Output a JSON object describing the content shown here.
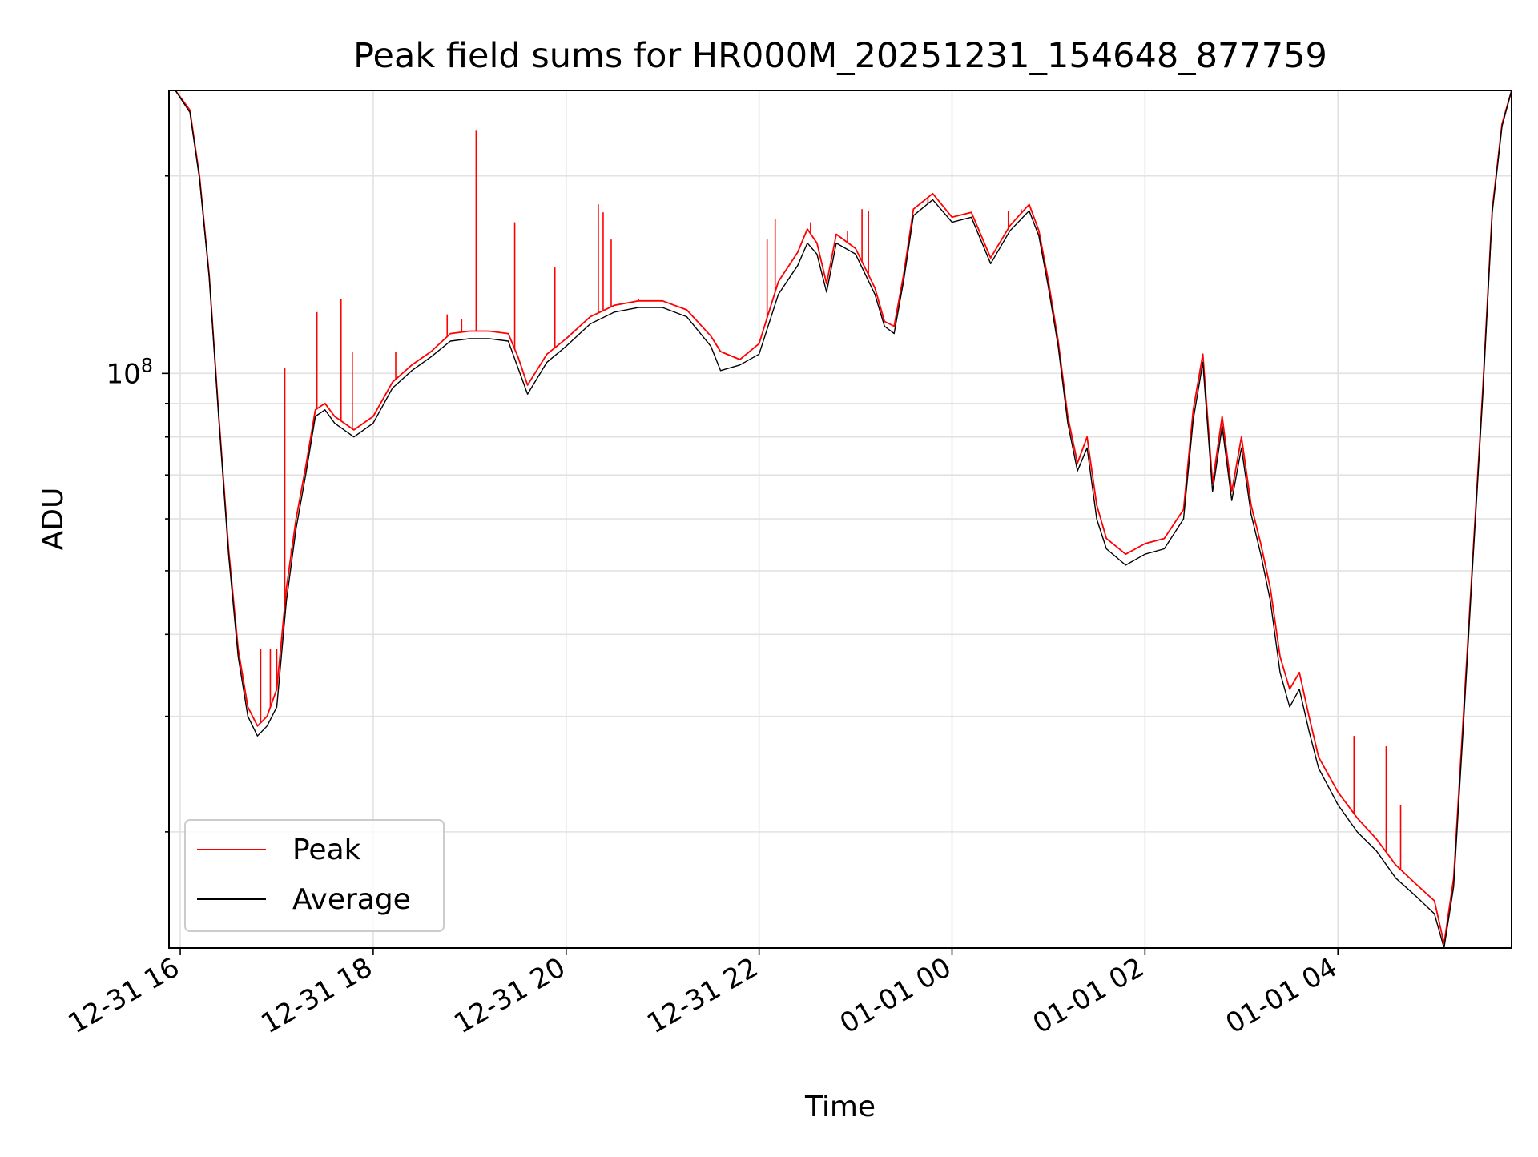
{
  "chart_data": {
    "type": "line",
    "title": "Peak field sums for HR000M_20251231_154648_877759",
    "xlabel": "Time",
    "ylabel": "ADU",
    "x_range": [
      "2025-12-31 15:53",
      "2026-01-01 05:48"
    ],
    "ylim": [
      13300000,
      270000000
    ],
    "y_scale": "log",
    "y_tick_label": {
      "base": "10",
      "exponent": "8",
      "value": 100000000
    },
    "grid": true,
    "legend_position": "lower-left",
    "x_tick_labels": [
      "12-31 16",
      "12-31 18",
      "12-31 20",
      "12-31 22",
      "01-01 00",
      "01-01 02",
      "01-01 04"
    ],
    "x_tick_values": [
      "2025-12-31 16:00",
      "2025-12-31 18:00",
      "2025-12-31 20:00",
      "2025-12-31 22:00",
      "2026-01-01 00:00",
      "2026-01-01 02:00",
      "2026-01-01 04:00"
    ],
    "series": [
      {
        "name": "Peak",
        "color": "#ff0000",
        "x": [
          "2025-12-31 15:57",
          "2025-12-31 16:06",
          "2025-12-31 16:12",
          "2025-12-31 16:18",
          "2025-12-31 16:24",
          "2025-12-31 16:30",
          "2025-12-31 16:36",
          "2025-12-31 16:42",
          "2025-12-31 16:48",
          "2025-12-31 16:54",
          "2025-12-31 17:00",
          "2025-12-31 17:06",
          "2025-12-31 17:12",
          "2025-12-31 17:18",
          "2025-12-31 17:24",
          "2025-12-31 17:30",
          "2025-12-31 17:36",
          "2025-12-31 17:48",
          "2025-12-31 18:00",
          "2025-12-31 18:12",
          "2025-12-31 18:24",
          "2025-12-31 18:36",
          "2025-12-31 18:48",
          "2025-12-31 19:00",
          "2025-12-31 19:12",
          "2025-12-31 19:24",
          "2025-12-31 19:30",
          "2025-12-31 19:36",
          "2025-12-31 19:48",
          "2025-12-31 20:00",
          "2025-12-31 20:15",
          "2025-12-31 20:30",
          "2025-12-31 20:45",
          "2025-12-31 21:00",
          "2025-12-31 21:15",
          "2025-12-31 21:30",
          "2025-12-31 21:36",
          "2025-12-31 21:48",
          "2025-12-31 22:00",
          "2025-12-31 22:12",
          "2025-12-31 22:24",
          "2025-12-31 22:30",
          "2025-12-31 22:36",
          "2025-12-31 22:42",
          "2025-12-31 22:48",
          "2025-12-31 23:00",
          "2025-12-31 23:12",
          "2025-12-31 23:18",
          "2025-12-31 23:24",
          "2025-12-31 23:30",
          "2025-12-31 23:36",
          "2025-12-31 23:48",
          "2026-01-01 00:00",
          "2026-01-01 00:12",
          "2026-01-01 00:24",
          "2026-01-01 00:36",
          "2026-01-01 00:48",
          "2026-01-01 00:54",
          "2026-01-01 01:00",
          "2026-01-01 01:06",
          "2026-01-01 01:12",
          "2026-01-01 01:18",
          "2026-01-01 01:24",
          "2026-01-01 01:30",
          "2026-01-01 01:36",
          "2026-01-01 01:48",
          "2026-01-01 02:00",
          "2026-01-01 02:12",
          "2026-01-01 02:24",
          "2026-01-01 02:30",
          "2026-01-01 02:36",
          "2026-01-01 02:42",
          "2026-01-01 02:48",
          "2026-01-01 02:54",
          "2026-01-01 03:00",
          "2026-01-01 03:06",
          "2026-01-01 03:12",
          "2026-01-01 03:18",
          "2026-01-01 03:24",
          "2026-01-01 03:30",
          "2026-01-01 03:36",
          "2026-01-01 03:42",
          "2026-01-01 03:48",
          "2026-01-01 04:00",
          "2026-01-01 04:12",
          "2026-01-01 04:24",
          "2026-01-01 04:36",
          "2026-01-01 04:48",
          "2026-01-01 05:00",
          "2026-01-01 05:06",
          "2026-01-01 05:12",
          "2026-01-01 05:18",
          "2026-01-01 05:24",
          "2026-01-01 05:30",
          "2026-01-01 05:36",
          "2026-01-01 05:42",
          "2026-01-01 05:48"
        ],
        "y": [
          270000000,
          252000000,
          200000000,
          141000000,
          86000000,
          54000000,
          38000000,
          31000000,
          29000000,
          30000000,
          33000000,
          47000000,
          60000000,
          72000000,
          88000000,
          90000000,
          86000000,
          82000000,
          86000000,
          97000000,
          103000000,
          108000000,
          115000000,
          116000000,
          116000000,
          115000000,
          106000000,
          96000000,
          107000000,
          113000000,
          122000000,
          127000000,
          129000000,
          129000000,
          125000000,
          114000000,
          108000000,
          105000000,
          111000000,
          138000000,
          153000000,
          166000000,
          158000000,
          137000000,
          163000000,
          155000000,
          135000000,
          120000000,
          118000000,
          142000000,
          178000000,
          188000000,
          173000000,
          176000000,
          150000000,
          168000000,
          181000000,
          165000000,
          138000000,
          112000000,
          86000000,
          73000000,
          80000000,
          63000000,
          56000000,
          53000000,
          55000000,
          56000000,
          62000000,
          88000000,
          107000000,
          68000000,
          86000000,
          66000000,
          80000000,
          63000000,
          55000000,
          47000000,
          37000000,
          33000000,
          35000000,
          30000000,
          26000000,
          23000000,
          21000000,
          19500000,
          17800000,
          16700000,
          15700000,
          13500000,
          17000000,
          30000000,
          53000000,
          94000000,
          178000000,
          240000000,
          270000000
        ]
      },
      {
        "name": "Average",
        "color": "#000000",
        "x": [
          "2025-12-31 15:57",
          "2025-12-31 16:06",
          "2025-12-31 16:12",
          "2025-12-31 16:18",
          "2025-12-31 16:24",
          "2025-12-31 16:30",
          "2025-12-31 16:36",
          "2025-12-31 16:42",
          "2025-12-31 16:48",
          "2025-12-31 16:54",
          "2025-12-31 17:00",
          "2025-12-31 17:06",
          "2025-12-31 17:12",
          "2025-12-31 17:18",
          "2025-12-31 17:24",
          "2025-12-31 17:30",
          "2025-12-31 17:36",
          "2025-12-31 17:48",
          "2025-12-31 18:00",
          "2025-12-31 18:12",
          "2025-12-31 18:24",
          "2025-12-31 18:36",
          "2025-12-31 18:48",
          "2025-12-31 19:00",
          "2025-12-31 19:12",
          "2025-12-31 19:24",
          "2025-12-31 19:30",
          "2025-12-31 19:36",
          "2025-12-31 19:48",
          "2025-12-31 20:00",
          "2025-12-31 20:15",
          "2025-12-31 20:30",
          "2025-12-31 20:45",
          "2025-12-31 21:00",
          "2025-12-31 21:15",
          "2025-12-31 21:30",
          "2025-12-31 21:36",
          "2025-12-31 21:48",
          "2025-12-31 22:00",
          "2025-12-31 22:12",
          "2025-12-31 22:24",
          "2025-12-31 22:30",
          "2025-12-31 22:36",
          "2025-12-31 22:42",
          "2025-12-31 22:48",
          "2025-12-31 23:00",
          "2025-12-31 23:12",
          "2025-12-31 23:18",
          "2025-12-31 23:24",
          "2025-12-31 23:30",
          "2025-12-31 23:36",
          "2025-12-31 23:48",
          "2026-01-01 00:00",
          "2026-01-01 00:12",
          "2026-01-01 00:24",
          "2026-01-01 00:36",
          "2026-01-01 00:48",
          "2026-01-01 00:54",
          "2026-01-01 01:00",
          "2026-01-01 01:06",
          "2026-01-01 01:12",
          "2026-01-01 01:18",
          "2026-01-01 01:24",
          "2026-01-01 01:30",
          "2026-01-01 01:36",
          "2026-01-01 01:48",
          "2026-01-01 02:00",
          "2026-01-01 02:12",
          "2026-01-01 02:24",
          "2026-01-01 02:30",
          "2026-01-01 02:36",
          "2026-01-01 02:42",
          "2026-01-01 02:48",
          "2026-01-01 02:54",
          "2026-01-01 03:00",
          "2026-01-01 03:06",
          "2026-01-01 03:12",
          "2026-01-01 03:18",
          "2026-01-01 03:24",
          "2026-01-01 03:30",
          "2026-01-01 03:36",
          "2026-01-01 03:42",
          "2026-01-01 03:48",
          "2026-01-01 04:00",
          "2026-01-01 04:12",
          "2026-01-01 04:24",
          "2026-01-01 04:36",
          "2026-01-01 04:48",
          "2026-01-01 05:00",
          "2026-01-01 05:06",
          "2026-01-01 05:12",
          "2026-01-01 05:18",
          "2026-01-01 05:24",
          "2026-01-01 05:30",
          "2026-01-01 05:36",
          "2026-01-01 05:42",
          "2026-01-01 05:48"
        ],
        "y": [
          270000000,
          250000000,
          198000000,
          140000000,
          85000000,
          53000000,
          37000000,
          30000000,
          28000000,
          29000000,
          31000000,
          45000000,
          58000000,
          70000000,
          86000000,
          88000000,
          84000000,
          80000000,
          84000000,
          95000000,
          101000000,
          106000000,
          112000000,
          113000000,
          113000000,
          112000000,
          102000000,
          93000000,
          104000000,
          110000000,
          119000000,
          124000000,
          126000000,
          126000000,
          122000000,
          110000000,
          101000000,
          103000000,
          107000000,
          132000000,
          146000000,
          158000000,
          152000000,
          133000000,
          158000000,
          152000000,
          132000000,
          118000000,
          115000000,
          139000000,
          174000000,
          184000000,
          170000000,
          173000000,
          147000000,
          165000000,
          177000000,
          162000000,
          135000000,
          110000000,
          84000000,
          71000000,
          77000000,
          60000000,
          54000000,
          51000000,
          53000000,
          54000000,
          60000000,
          85000000,
          104000000,
          66000000,
          83000000,
          64000000,
          77000000,
          61000000,
          53000000,
          45000000,
          35000000,
          31000000,
          33000000,
          28500000,
          25000000,
          22000000,
          20000000,
          18700000,
          17000000,
          16000000,
          15000000,
          13300000,
          16500000,
          29000000,
          52000000,
          92000000,
          176000000,
          238000000,
          270000000
        ]
      }
    ],
    "peak_spikes": [
      {
        "x": "2025-12-31 16:50",
        "y": 38000000
      },
      {
        "x": "2025-12-31 16:56",
        "y": 38000000
      },
      {
        "x": "2025-12-31 17:00",
        "y": 38000000
      },
      {
        "x": "2025-12-31 17:05",
        "y": 102000000
      },
      {
        "x": "2025-12-31 17:09",
        "y": 54000000
      },
      {
        "x": "2025-12-31 17:25",
        "y": 124000000
      },
      {
        "x": "2025-12-31 17:40",
        "y": 130000000
      },
      {
        "x": "2025-12-31 17:47",
        "y": 108000000
      },
      {
        "x": "2025-12-31 18:14",
        "y": 108000000
      },
      {
        "x": "2025-12-31 18:46",
        "y": 123000000
      },
      {
        "x": "2025-12-31 18:55",
        "y": 121000000
      },
      {
        "x": "2025-12-31 19:04",
        "y": 235000000
      },
      {
        "x": "2025-12-31 19:28",
        "y": 170000000
      },
      {
        "x": "2025-12-31 19:53",
        "y": 145000000
      },
      {
        "x": "2025-12-31 20:20",
        "y": 181000000
      },
      {
        "x": "2025-12-31 20:23",
        "y": 176000000
      },
      {
        "x": "2025-12-31 20:28",
        "y": 160000000
      },
      {
        "x": "2025-12-31 20:45",
        "y": 130000000
      },
      {
        "x": "2025-12-31 22:05",
        "y": 160000000
      },
      {
        "x": "2025-12-31 22:10",
        "y": 172000000
      },
      {
        "x": "2025-12-31 22:32",
        "y": 170000000
      },
      {
        "x": "2025-12-31 22:55",
        "y": 165000000
      },
      {
        "x": "2025-12-31 23:04",
        "y": 178000000
      },
      {
        "x": "2025-12-31 23:08",
        "y": 177000000
      },
      {
        "x": "2025-12-31 23:45",
        "y": 182000000
      },
      {
        "x": "2026-01-01 00:35",
        "y": 177000000
      },
      {
        "x": "2026-01-01 00:43",
        "y": 178000000
      },
      {
        "x": "2026-01-01 04:10",
        "y": 28000000
      },
      {
        "x": "2026-01-01 04:30",
        "y": 27000000
      },
      {
        "x": "2026-01-01 04:39",
        "y": 22000000
      }
    ]
  }
}
